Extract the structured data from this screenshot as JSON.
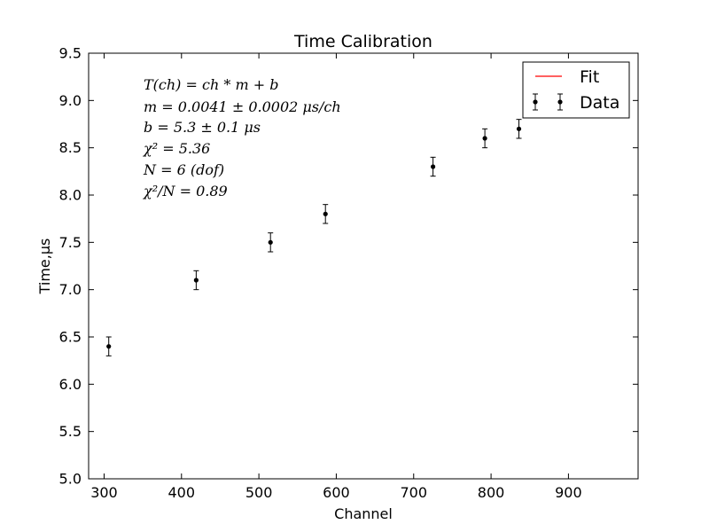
{
  "chart_data": {
    "type": "scatter",
    "title": "Time Calibration",
    "xlabel": "Channel",
    "ylabel": "Time,μs",
    "xlim": [
      280,
      990
    ],
    "ylim": [
      5.0,
      9.5
    ],
    "xticks": [
      300,
      400,
      500,
      600,
      700,
      800,
      900
    ],
    "yticks": [
      5.0,
      5.5,
      6.0,
      6.5,
      7.0,
      7.5,
      8.0,
      8.5,
      9.0,
      9.5
    ],
    "grid": false,
    "legend_position": "top-right",
    "legend": [
      {
        "label": "Fit",
        "kind": "line",
        "color": "#ff0000"
      },
      {
        "label": "Data",
        "kind": "errorbar",
        "color": "#000000"
      }
    ],
    "series": [
      {
        "name": "Data",
        "kind": "errorbar",
        "color": "#000000",
        "x": [
          306,
          419,
          515,
          586,
          725,
          792,
          836
        ],
        "y": [
          6.4,
          7.1,
          7.5,
          7.8,
          8.3,
          8.6,
          8.7
        ],
        "yerr": [
          0.1,
          0.1,
          0.1,
          0.1,
          0.1,
          0.1,
          0.1
        ]
      }
    ],
    "annotations": [
      "T(ch) = ch * m + b",
      "m = 0.0041 ± 0.0002 μs/ch",
      "b = 5.3 ± 0.1 μs",
      "χ² = 5.36",
      "N = 6 (dof)",
      "χ²/N = 0.89"
    ]
  }
}
